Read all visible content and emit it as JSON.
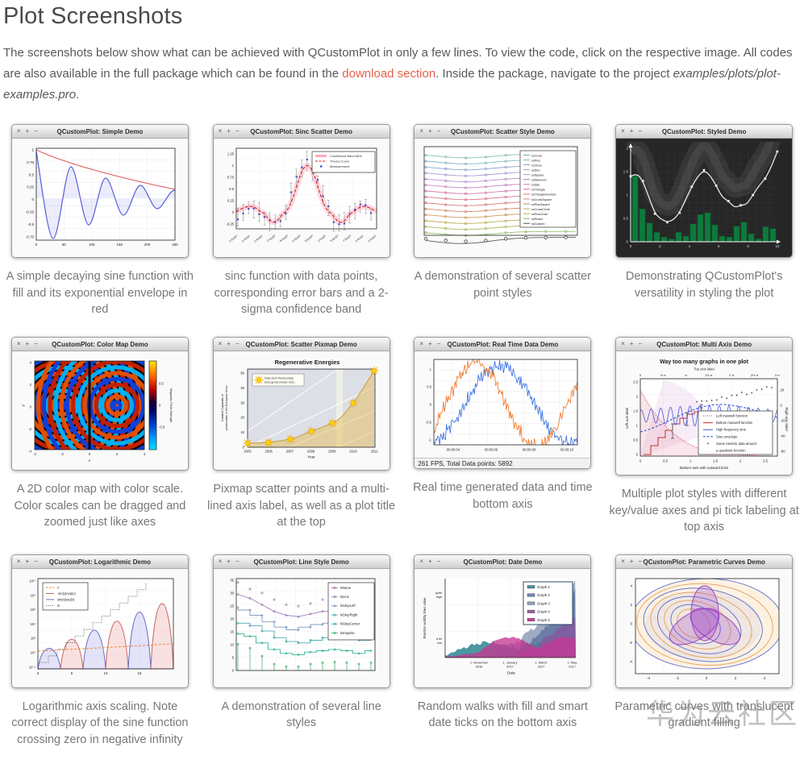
{
  "page": {
    "title": "Plot Screenshots",
    "intro_before_link": "The screenshots below show what can be achieved with QCustomPlot in only a few lines. To view the code, click on the respective image. All codes are also available in the full package which can be found in the ",
    "intro_link": "download section",
    "intro_after_link": ". Inside the package, navigate to the project ",
    "intro_project": "examples/plots/plot-examples.pro",
    "intro_end": ".",
    "watermark": "华为云社区",
    "link_color": "#e4604a"
  },
  "chrome": {
    "close": "×",
    "max": "+",
    "min": "−"
  },
  "plots": {
    "simple": {
      "window_title": "QCustomPlot: Simple Demo",
      "caption": "A simple decaying sine function with fill and its exponential envelope in red",
      "yticks": [
        "1",
        "0.75",
        "0.5",
        "0.25",
        "0",
        "-0.25",
        "-0.5",
        "-0.75"
      ],
      "xticks": [
        "0",
        "50",
        "100",
        "150",
        "200",
        "250"
      ]
    },
    "sinc": {
      "window_title": "QCustomPlot: Sinc Scatter Demo",
      "caption": "sinc function with data points, corresponding error bars and a 2-sigma confidence band",
      "legend": [
        "Confidence Band 68%",
        "Theory Curve",
        "Measurement"
      ],
      "yticks": [
        "1.25",
        "1",
        "0.75",
        "0.5",
        "0.25",
        "0",
        "-0.25"
      ],
      "xticks": [
        "-1.5x10⁴",
        "-1.3x10⁴",
        "-1.0x10⁴",
        "-7.5x10³",
        "-5.0x10³",
        "-2.5x10³",
        "0.0x10⁰",
        "2.5x10³",
        "5.0x10³",
        "7.5x10³",
        "1.0x10⁴",
        "1.3x10⁴"
      ]
    },
    "scatterstyle": {
      "window_title": "QCustomPlot: Scatter Style Demo",
      "caption": "A demonstration of several scatter point styles",
      "legend": [
        "ssCross",
        "ssPlus",
        "ssCircle",
        "ssDisc",
        "ssSquare",
        "ssDiamond",
        "ssStar",
        "ssTriangle",
        "ssTriangleInverted",
        "ssCrossSquare",
        "ssPlusSquare",
        "ssCrossCircle",
        "ssPlusCircle",
        "ssPeace",
        "ssCustom"
      ]
    },
    "styled": {
      "window_title": "QCustomPlot: Styled Demo",
      "caption": "Demonstrating QCustomPlot's versatility in styling the plot",
      "yticks": [
        "2",
        "1.5",
        "1",
        "0.5",
        "0"
      ],
      "xticks": [
        "0",
        "2",
        "4",
        "6",
        "8",
        "10"
      ],
      "bar_values": [
        1.4,
        0.7,
        0.4,
        0.2,
        0.1,
        0.06,
        0.2,
        0.12,
        0.38,
        0.58,
        0.62,
        0.36,
        0.12,
        0.1,
        0.33,
        0.42,
        0.17,
        0.06,
        0.32,
        0.28
      ],
      "line_values": [
        1.4,
        1.47,
        1.3,
        0.95,
        0.6,
        0.48,
        0.42,
        0.47,
        0.62,
        0.9,
        1.18,
        1.4,
        1.53,
        1.42,
        1.2,
        0.95,
        0.87,
        0.73,
        0.78,
        0.8,
        1.0,
        1.2,
        1.35,
        1.6,
        1.93
      ]
    },
    "colormap": {
      "window_title": "QCustomPlot: Color Map Demo",
      "caption": "A 2D color map with color scale. Color scales can be dragged and zoomed just like axes",
      "xticks": [
        "-4",
        "-2",
        "0",
        "2",
        "4"
      ],
      "yticks": [
        "4",
        "2",
        "0",
        "-2",
        "-4"
      ],
      "scale_ticks": [
        "0.5",
        "0",
        "-0.5"
      ],
      "scale_label": "Magnetic Field Strength",
      "xlabel": "x",
      "ylabel": "y"
    },
    "pixmap": {
      "window_title": "QCustomPlot: Scatter Pixmap Demo",
      "caption": "Pixmap scatter points and a multi-lined axis label, as well as a plot title at the top",
      "plot_title": "Regenerative Energies",
      "legend_line1": "Data from Photovoltaic",
      "legend_line2": "Energy barometer 2011",
      "yticks": [
        "50",
        "40",
        "30",
        "20",
        "10",
        "0"
      ],
      "xticks": [
        "2005",
        "2006",
        "2007",
        "2008",
        "2009",
        "2010",
        "2011"
      ],
      "values": [
        2.5,
        3,
        5.5,
        10.5,
        16,
        29.5,
        51
      ],
      "xlabel": "Year",
      "ylabel_line1": "Installed Gigawatts of",
      "ylabel_line2": "photovoltaic in the European Union"
    },
    "realtime": {
      "window_title": "QCustomPlot: Real Time Data Demo",
      "caption": "Real time generated data and time bottom axis",
      "yticks": [
        "1",
        "0.5",
        "0",
        "-0.5",
        "-1"
      ],
      "xticks": [
        "00:00:04",
        "00:00:06",
        "00:00:08",
        "00:00:10"
      ],
      "status": "261 FPS, Total Data points: 5892"
    },
    "multiaxis": {
      "window_title": "QCustomPlot: Multi Axis Demo",
      "caption": "Multiple plot styles with different key/value axes and pi tick labeling at top axis",
      "plot_title": "Way too many graphs in one plot",
      "top_label": "Top axis label",
      "top_ticks": [
        "0",
        "½ π",
        "π",
        "1½ π",
        "2 π",
        "2½ π",
        "3 π"
      ],
      "left_label": "Left axis label",
      "left_ticks": [
        "2.5",
        "2",
        "1.5",
        "1",
        "0.5",
        "0"
      ],
      "right_label": "Right axis label",
      "right_ticks": [
        "20",
        "0",
        "-20",
        "-40",
        "-60"
      ],
      "bottom_label": "Bottom axis with outward ticks",
      "bottom_ticks": [
        "0",
        "0.5",
        "1",
        "1.5",
        "2",
        "2.5"
      ],
      "legend": [
        "Left maxwell function",
        "Bottom maxwell function",
        "High frequency sine",
        "Sine envelope",
        "Some random data around",
        "a quadratic function"
      ]
    },
    "logarithmic": {
      "window_title": "QCustomPlot: Logarithmic Demo",
      "caption": "Logarithmic axis scaling. Note correct display of the sine function crossing zero in negative infinity",
      "legend": [
        "x",
        "-sin(x)exp(x)",
        "sin(x)exp(x)",
        "x!"
      ],
      "yticks": [
        "10¹⁰",
        "10⁸",
        "10⁶",
        "10⁴",
        "10²",
        "10⁰",
        "10⁻²"
      ],
      "xticks": [
        "0",
        "5",
        "10",
        "15"
      ]
    },
    "linestyle": {
      "window_title": "QCustomPlot: Line Style Demo",
      "caption": "A demonstration of several line styles",
      "legend": [
        "lsNone",
        "lsLine",
        "lsStepLeft",
        "lsStepRight",
        "lsStepCenter",
        "lsImpulse"
      ],
      "yticks": [
        "35",
        "30",
        "25",
        "20",
        "15",
        "10",
        "5",
        "0"
      ],
      "series": [
        {
          "name": "lsNone",
          "values": [
            33.5,
            31,
            29.5,
            27,
            25,
            24.5,
            25.5,
            27,
            27.5,
            27,
            26,
            24.5
          ]
        },
        {
          "name": "lsLine",
          "values": [
            29,
            27.5,
            25,
            22.5,
            21,
            20.5,
            21.5,
            22.5,
            22.5,
            22,
            21.5,
            21.5
          ]
        },
        {
          "name": "lsStepLeft",
          "values": [
            24,
            23,
            21,
            18.5,
            16.5,
            15.5,
            16.5,
            17.5,
            18,
            17.5,
            16.5,
            17
          ]
        },
        {
          "name": "lsStepRight",
          "values": [
            18,
            17,
            15,
            12.5,
            11,
            10.5,
            11.5,
            12.5,
            12.5,
            12,
            11.5,
            12.5
          ]
        },
        {
          "name": "lsStepCenter",
          "values": [
            14,
            13,
            10.5,
            8,
            6.5,
            6,
            7,
            7.5,
            8,
            7.5,
            6.5,
            7.5
          ]
        },
        {
          "name": "lsImpulse",
          "values": [
            10,
            8.5,
            5.5,
            2.5,
            1.5,
            1.5,
            2.5,
            3,
            3.2,
            3,
            2.5,
            3
          ]
        }
      ]
    },
    "date": {
      "window_title": "QCustomPlot: Date Demo",
      "caption": "Random walks with fill and smart date ticks on the bottom axis",
      "legend": [
        "Graph 1",
        "Graph 2",
        "Graph 3",
        "Graph 4",
        "Graph 5"
      ],
      "ytick_high_1": "quite",
      "ytick_high_2": "high",
      "ytick_low_1": "a bit",
      "ytick_low_2": "low",
      "xticks_line1": [
        "1. November",
        "1. January",
        "1. March",
        "1. May"
      ],
      "xticks_line2": [
        "2016",
        "2017",
        "2017",
        "2017"
      ],
      "xlabel": "Date",
      "ylabel": "Random wobbly lines value"
    },
    "parametric": {
      "window_title": "QCustomPlot: Parametric Curves Demo",
      "caption": "Parametric curves with translucent gradient filling",
      "xticks": [
        "-4",
        "-2",
        "0",
        "2",
        "4"
      ],
      "yticks": [
        "4",
        "2",
        "0",
        "-2",
        "-4"
      ]
    }
  }
}
